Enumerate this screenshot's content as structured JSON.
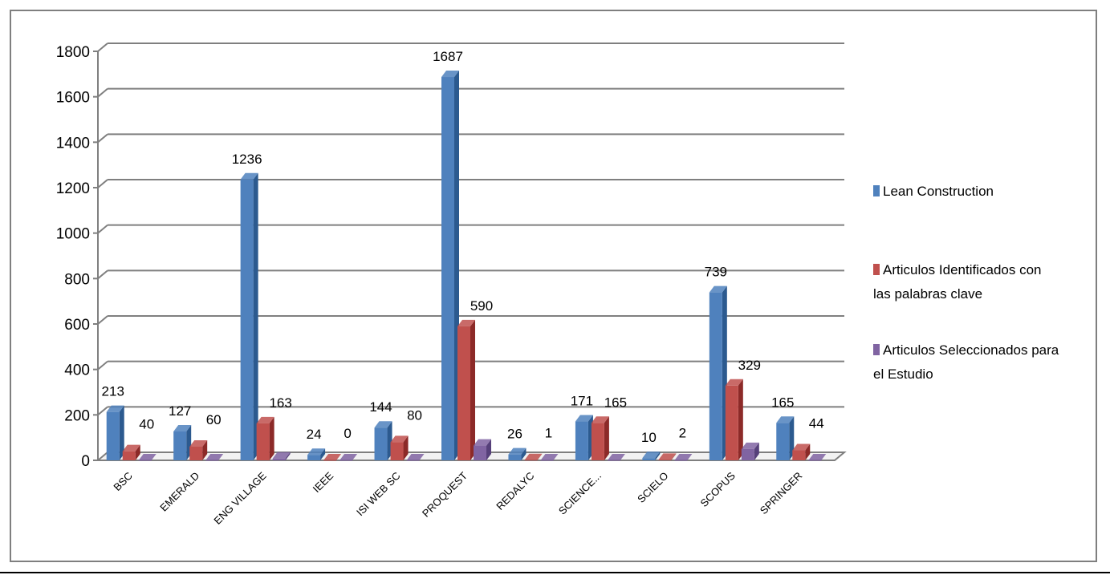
{
  "chart_data": {
    "type": "bar",
    "title": "",
    "xlabel": "",
    "ylabel": "",
    "ylim": [
      0,
      1800
    ],
    "yticks": [
      0,
      200,
      400,
      600,
      800,
      1000,
      1200,
      1400,
      1600,
      1800
    ],
    "grid": true,
    "legend_position": "right",
    "categories": [
      "BSC",
      "EMERALD",
      "ENG VILLAGE",
      "IEEE",
      "ISI WEB SC",
      "PROQUEST",
      "REDALYC",
      "SCIENCE...",
      "SCIELO",
      "SCOPUS",
      "SPRINGER"
    ],
    "series": [
      {
        "name": "Lean Construction",
        "color": "#4f81bd",
        "dark": "#2c5a8f",
        "values": [
          213,
          127,
          1236,
          24,
          144,
          1687,
          26,
          171,
          10,
          739,
          165
        ],
        "labels": [
          "213",
          "127",
          "1236",
          "24",
          "144",
          "1687",
          "26",
          "171",
          "10",
          "739",
          "165"
        ]
      },
      {
        "name": "Articulos Identificados con las palabras clave",
        "color": "#c0504d",
        "dark": "#8c2a28",
        "values": [
          40,
          60,
          163,
          0,
          80,
          590,
          1,
          165,
          2,
          329,
          44
        ],
        "labels": [
          "40",
          "60",
          "163",
          "0",
          "80",
          "590",
          "1",
          "165",
          "2",
          "329",
          "44"
        ]
      },
      {
        "name": "Articulos Seleccionados para el Estudio",
        "color": "#8064a2",
        "dark": "#56407a",
        "values": [
          0,
          0,
          8,
          0,
          0,
          65,
          0,
          0,
          0,
          50,
          0
        ]
      }
    ],
    "legend": [
      {
        "line1": "Lean Construction",
        "line2": ""
      },
      {
        "line1": "Articulos Identificados con",
        "line2": "las palabras clave"
      },
      {
        "line1": "Articulos Seleccionados para",
        "line2": "el Estudio"
      }
    ]
  }
}
